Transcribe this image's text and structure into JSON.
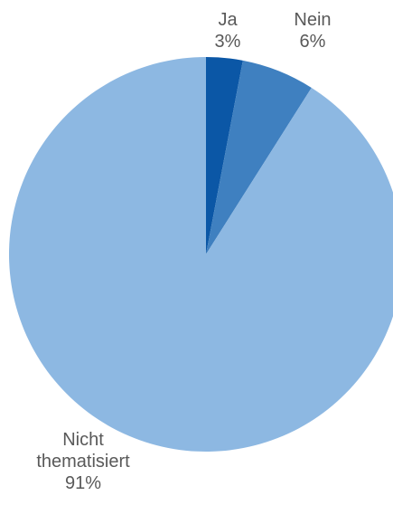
{
  "chart_data": {
    "type": "pie",
    "title": "",
    "slices": [
      {
        "label_lines": [
          "Ja"
        ],
        "percent_label": "3%",
        "value": 3,
        "color": "#0b57a6"
      },
      {
        "label_lines": [
          "Nein"
        ],
        "percent_label": "6%",
        "value": 6,
        "color": "#3f80c0"
      },
      {
        "label_lines": [
          "Nicht",
          "thematisiert"
        ],
        "percent_label": "91%",
        "value": 91,
        "color": "#8db8e2"
      }
    ],
    "start_angle_deg": 0,
    "direction": "clockwise",
    "label_color": "#595959"
  }
}
